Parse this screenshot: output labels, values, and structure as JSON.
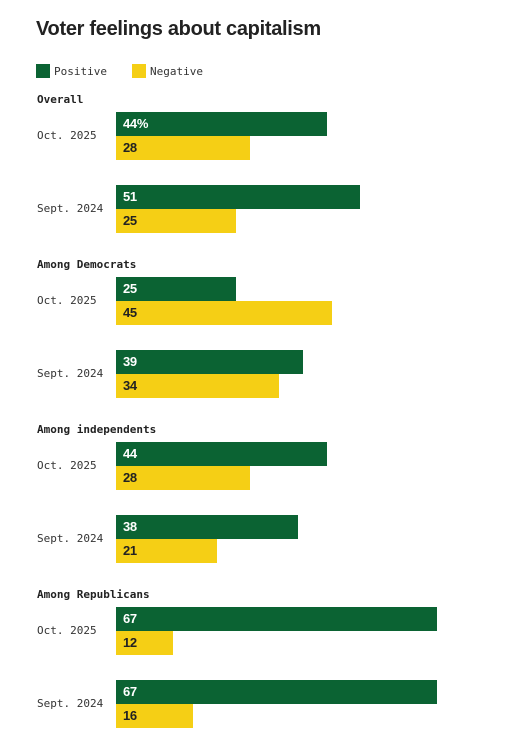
{
  "title": "Voter feelings about capitalism",
  "legend": [
    {
      "label": "Positive",
      "color": "#0b6333"
    },
    {
      "label": "Negative",
      "color": "#f5cf15"
    }
  ],
  "chart_data": {
    "type": "bar",
    "orientation": "horizontal",
    "title": "Voter feelings about capitalism",
    "xlim": [
      0,
      70
    ],
    "grid": false,
    "legend_position": "top-left",
    "series": [
      {
        "name": "Positive",
        "color": "#0b6333"
      },
      {
        "name": "Negative",
        "color": "#f5cf15"
      }
    ],
    "groups": [
      {
        "label": "Overall",
        "periods": [
          {
            "label": "Oct. 2025",
            "positive": 44,
            "negative": 28,
            "positive_label": "44%",
            "negative_label": "28"
          },
          {
            "label": "Sept. 2024",
            "positive": 51,
            "negative": 25,
            "positive_label": "51",
            "negative_label": "25"
          }
        ]
      },
      {
        "label": "Among Democrats",
        "periods": [
          {
            "label": "Oct. 2025",
            "positive": 25,
            "negative": 45,
            "positive_label": "25",
            "negative_label": "45"
          },
          {
            "label": "Sept. 2024",
            "positive": 39,
            "negative": 34,
            "positive_label": "39",
            "negative_label": "34"
          }
        ]
      },
      {
        "label": "Among independents",
        "periods": [
          {
            "label": "Oct. 2025",
            "positive": 44,
            "negative": 28,
            "positive_label": "44",
            "negative_label": "28"
          },
          {
            "label": "Sept. 2024",
            "positive": 38,
            "negative": 21,
            "positive_label": "38",
            "negative_label": "21"
          }
        ]
      },
      {
        "label": "Among Republicans",
        "periods": [
          {
            "label": "Oct. 2025",
            "positive": 67,
            "negative": 12,
            "positive_label": "67",
            "negative_label": "12"
          },
          {
            "label": "Sept. 2024",
            "positive": 67,
            "negative": 16,
            "positive_label": "67",
            "negative_label": "16"
          }
        ]
      }
    ]
  }
}
